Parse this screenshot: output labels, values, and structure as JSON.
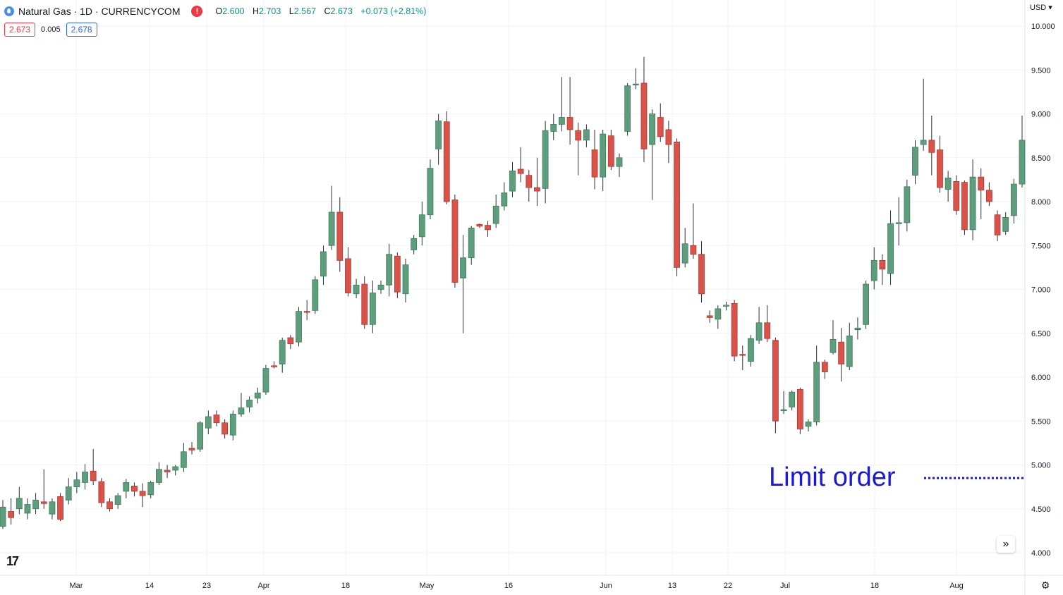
{
  "header": {
    "symbol_title": "Natural Gas · 1D · CURRENCYCOM",
    "alert_glyph": "!",
    "ohlc": {
      "o_label": "O",
      "o_value": "2.600",
      "h_label": "H",
      "h_value": "2.703",
      "l_label": "L",
      "l_value": "2.567",
      "c_label": "C",
      "c_value": "2.673",
      "change": "+0.073 (+2.81%)"
    },
    "bid": "2.673",
    "spread": "0.005",
    "ask": "2.678"
  },
  "currency_label": "USD",
  "logo_text": "17",
  "chart_data": {
    "type": "candlestick",
    "x_labels": [
      "Mar",
      "14",
      "23",
      "Apr",
      "18",
      "May",
      "16",
      "Jun",
      "13",
      "22",
      "Jul",
      "18",
      "Aug"
    ],
    "y_ticks": [
      "4.000",
      "4.500",
      "5.000",
      "5.500",
      "6.000",
      "6.500",
      "7.000",
      "7.500",
      "8.000",
      "8.500",
      "9.000",
      "9.500",
      "10.000"
    ],
    "ylim": [
      3.85,
      10.15
    ],
    "up_color": "#5f9e7d",
    "down_color": "#d9534a",
    "annotation": {
      "text": "Limit order",
      "price": 4.85,
      "color": "#1a1ad6"
    },
    "candles": [
      [
        4.3,
        4.52,
        4.6,
        4.27
      ],
      [
        4.47,
        4.4,
        4.62,
        4.32
      ],
      [
        4.5,
        4.62,
        4.75,
        4.44
      ],
      [
        4.45,
        4.55,
        4.62,
        4.38
      ],
      [
        4.5,
        4.6,
        4.68,
        4.44
      ],
      [
        4.58,
        4.56,
        4.95,
        4.5
      ],
      [
        4.44,
        4.58,
        4.62,
        4.38
      ],
      [
        4.64,
        4.38,
        4.68,
        4.36
      ],
      [
        4.6,
        4.75,
        4.85,
        4.55
      ],
      [
        4.75,
        4.83,
        4.92,
        4.68
      ],
      [
        4.8,
        4.92,
        5.01,
        4.72
      ],
      [
        4.93,
        4.82,
        5.18,
        4.77
      ],
      [
        4.81,
        4.57,
        4.85,
        4.52
      ],
      [
        4.58,
        4.5,
        4.62,
        4.47
      ],
      [
        4.55,
        4.65,
        4.68,
        4.5
      ],
      [
        4.7,
        4.8,
        4.84,
        4.62
      ],
      [
        4.76,
        4.7,
        4.8,
        4.64
      ],
      [
        4.7,
        4.65,
        4.79,
        4.52
      ],
      [
        4.66,
        4.8,
        4.82,
        4.62
      ],
      [
        4.8,
        4.95,
        5.03,
        4.77
      ],
      [
        4.94,
        4.92,
        5.0,
        4.85
      ],
      [
        4.94,
        4.98,
        5.0,
        4.88
      ],
      [
        4.97,
        5.15,
        5.25,
        4.92
      ],
      [
        5.19,
        5.17,
        5.26,
        5.12
      ],
      [
        5.18,
        5.48,
        5.5,
        5.15
      ],
      [
        5.42,
        5.55,
        5.62,
        5.35
      ],
      [
        5.57,
        5.48,
        5.62,
        5.44
      ],
      [
        5.48,
        5.35,
        5.52,
        5.3
      ],
      [
        5.34,
        5.58,
        5.62,
        5.28
      ],
      [
        5.58,
        5.65,
        5.82,
        5.55
      ],
      [
        5.66,
        5.74,
        5.78,
        5.6
      ],
      [
        5.76,
        5.82,
        5.88,
        5.7
      ],
      [
        5.83,
        6.1,
        6.14,
        5.8
      ],
      [
        6.13,
        6.12,
        6.18,
        6.1
      ],
      [
        6.15,
        6.42,
        6.45,
        6.05
      ],
      [
        6.45,
        6.38,
        6.48,
        6.32
      ],
      [
        6.4,
        6.75,
        6.8,
        6.35
      ],
      [
        6.75,
        6.74,
        6.88,
        6.65
      ],
      [
        6.76,
        7.11,
        7.15,
        6.72
      ],
      [
        7.15,
        7.43,
        7.5,
        7.05
      ],
      [
        7.5,
        7.88,
        8.18,
        7.45
      ],
      [
        7.88,
        7.33,
        8.05,
        7.2
      ],
      [
        7.35,
        6.96,
        7.48,
        6.92
      ],
      [
        6.95,
        7.05,
        7.12,
        6.9
      ],
      [
        7.06,
        6.6,
        7.15,
        6.55
      ],
      [
        6.6,
        6.96,
        7.1,
        6.5
      ],
      [
        7.0,
        7.05,
        7.1,
        6.95
      ],
      [
        7.05,
        7.4,
        7.52,
        6.92
      ],
      [
        7.38,
        6.97,
        7.42,
        6.9
      ],
      [
        6.95,
        7.28,
        7.35,
        6.85
      ],
      [
        7.45,
        7.58,
        7.62,
        7.4
      ],
      [
        7.6,
        7.85,
        8.0,
        7.5
      ],
      [
        7.85,
        8.38,
        8.48,
        7.8
      ],
      [
        8.6,
        8.92,
        9.0,
        8.42
      ],
      [
        8.91,
        8.0,
        9.03,
        7.97
      ],
      [
        8.02,
        7.08,
        8.08,
        7.02
      ],
      [
        7.13,
        7.36,
        7.62,
        6.5
      ],
      [
        7.36,
        7.7,
        7.72,
        7.28
      ],
      [
        7.74,
        7.72,
        7.75,
        7.7
      ],
      [
        7.73,
        7.68,
        7.78,
        7.6
      ],
      [
        7.75,
        7.95,
        8.08,
        7.7
      ],
      [
        7.95,
        8.1,
        8.22,
        7.9
      ],
      [
        8.12,
        8.35,
        8.45,
        8.05
      ],
      [
        8.37,
        8.32,
        8.62,
        8.22
      ],
      [
        8.3,
        8.16,
        8.36,
        8.0
      ],
      [
        8.16,
        8.12,
        8.5,
        7.95
      ],
      [
        8.15,
        8.81,
        8.92,
        7.98
      ],
      [
        8.8,
        8.88,
        9.0,
        8.7
      ],
      [
        8.88,
        8.96,
        9.42,
        8.8
      ],
      [
        8.96,
        8.82,
        9.42,
        8.65
      ],
      [
        8.81,
        8.7,
        8.9,
        8.3
      ],
      [
        8.7,
        8.82,
        8.88,
        8.62
      ],
      [
        8.59,
        8.28,
        8.82,
        8.14
      ],
      [
        8.28,
        8.77,
        8.82,
        8.12
      ],
      [
        8.75,
        8.4,
        8.82,
        8.36
      ],
      [
        8.4,
        8.5,
        8.55,
        8.28
      ],
      [
        8.8,
        9.32,
        9.35,
        8.75
      ],
      [
        9.34,
        9.34,
        9.52,
        9.28
      ],
      [
        9.35,
        8.6,
        9.65,
        8.45
      ],
      [
        8.65,
        9.0,
        9.05,
        8.02
      ],
      [
        8.96,
        8.74,
        9.12,
        8.68
      ],
      [
        8.82,
        8.65,
        8.92,
        8.44
      ],
      [
        8.68,
        7.25,
        8.72,
        7.15
      ],
      [
        7.3,
        7.52,
        7.7,
        7.25
      ],
      [
        7.5,
        7.4,
        7.98,
        7.35
      ],
      [
        7.4,
        6.95,
        7.55,
        6.85
      ],
      [
        6.7,
        6.68,
        6.76,
        6.62
      ],
      [
        6.66,
        6.78,
        6.82,
        6.55
      ],
      [
        6.82,
        6.82,
        6.86,
        6.76
      ],
      [
        6.84,
        6.24,
        6.88,
        6.18
      ],
      [
        6.26,
        6.25,
        6.36,
        6.08
      ],
      [
        6.18,
        6.44,
        6.48,
        6.12
      ],
      [
        6.42,
        6.62,
        6.8,
        6.38
      ],
      [
        6.62,
        6.44,
        6.82,
        6.4
      ],
      [
        6.42,
        5.5,
        6.45,
        5.36
      ],
      [
        5.63,
        5.63,
        5.84,
        5.58
      ],
      [
        5.66,
        5.83,
        5.85,
        5.62
      ],
      [
        5.86,
        5.41,
        5.88,
        5.35
      ],
      [
        5.44,
        5.49,
        5.52,
        5.38
      ],
      [
        5.49,
        6.17,
        6.36,
        5.45
      ],
      [
        6.17,
        6.06,
        6.2,
        5.98
      ],
      [
        6.28,
        6.43,
        6.65,
        6.26
      ],
      [
        6.4,
        6.15,
        6.56,
        5.95
      ],
      [
        6.12,
        6.47,
        6.62,
        6.08
      ],
      [
        6.54,
        6.56,
        6.68,
        6.43
      ],
      [
        6.6,
        7.06,
        7.1,
        6.55
      ],
      [
        7.1,
        7.33,
        7.48,
        7.0
      ],
      [
        7.33,
        7.23,
        7.4,
        7.05
      ],
      [
        7.18,
        7.75,
        7.9,
        7.05
      ],
      [
        7.75,
        7.76,
        8.05,
        7.5
      ],
      [
        7.76,
        8.17,
        8.25,
        7.66
      ],
      [
        8.3,
        8.62,
        8.7,
        8.2
      ],
      [
        8.65,
        8.7,
        9.4,
        8.58
      ],
      [
        8.7,
        8.56,
        8.98,
        8.3
      ],
      [
        8.59,
        8.16,
        8.75,
        8.1
      ],
      [
        8.14,
        8.27,
        8.35,
        8.0
      ],
      [
        8.23,
        7.9,
        8.3,
        7.85
      ],
      [
        8.22,
        7.68,
        8.24,
        7.62
      ],
      [
        7.68,
        8.28,
        8.48,
        7.56
      ],
      [
        8.28,
        8.13,
        8.38,
        7.8
      ],
      [
        8.13,
        8.0,
        8.22,
        7.95
      ],
      [
        7.85,
        7.62,
        7.9,
        7.55
      ],
      [
        7.66,
        7.82,
        7.88,
        7.62
      ],
      [
        7.84,
        8.2,
        8.26,
        7.75
      ],
      [
        8.2,
        8.7,
        8.98,
        8.16
      ]
    ]
  }
}
